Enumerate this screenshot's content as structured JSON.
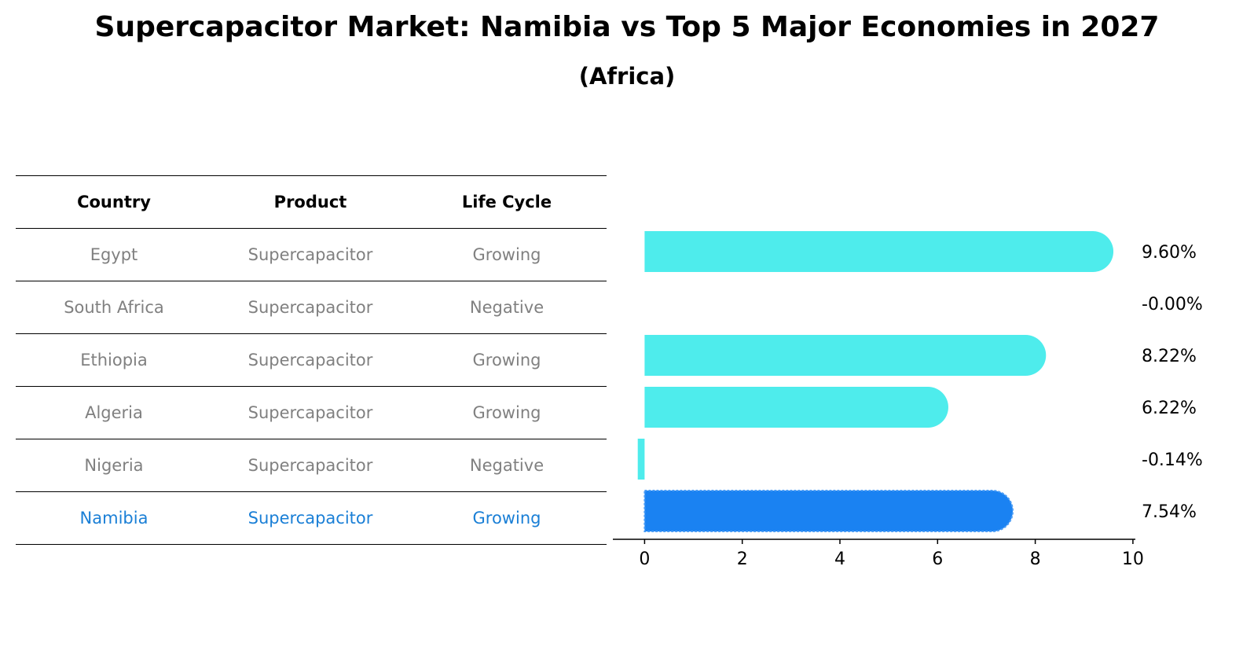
{
  "title": "Supercapacitor Market: Namibia vs Top 5 Major Economies in 2027",
  "subtitle": "(Africa)",
  "table": {
    "headers": [
      "Country",
      "Product",
      "Life Cycle"
    ],
    "rows": [
      [
        "Egypt",
        "Supercapacitor",
        "Growing"
      ],
      [
        "South Africa",
        "Supercapacitor",
        "Negative"
      ],
      [
        "Ethiopia",
        "Supercapacitor",
        "Growing"
      ],
      [
        "Algeria",
        "Supercapacitor",
        "Growing"
      ],
      [
        "Nigeria",
        "Supercapacitor",
        "Negative"
      ],
      [
        "Namibia",
        "Supercapacitor",
        "Growing"
      ]
    ]
  },
  "chart_data": {
    "type": "bar",
    "orientation": "horizontal",
    "title": "Supercapacitor Market: Namibia vs Top 5 Major Economies in 2027",
    "subtitle": "(Africa)",
    "categories": [
      "Egypt",
      "South Africa",
      "Ethiopia",
      "Algeria",
      "Nigeria",
      "Namibia"
    ],
    "values": [
      9.6,
      -0.0,
      8.22,
      6.22,
      -0.14,
      7.54
    ],
    "labels": [
      "9.60%",
      "-0.00%",
      "8.22%",
      "6.22%",
      "-0.14%",
      "7.54%"
    ],
    "highlight": "Namibia",
    "xlim": [
      -0.65,
      10.05
    ],
    "xticks": [
      0,
      2,
      4,
      6,
      8,
      10
    ],
    "colors": {
      "bar": "#4eecec",
      "highlight": "#1a82f2",
      "highlight_text": "#1a7fd6"
    }
  }
}
